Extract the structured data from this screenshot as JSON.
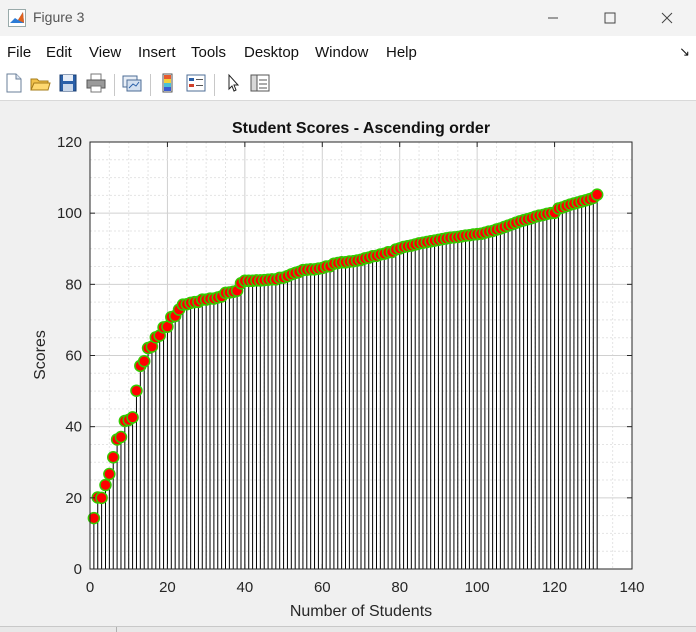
{
  "window": {
    "title": "Figure 3"
  },
  "menu": {
    "items": [
      "File",
      "Edit",
      "View",
      "Insert",
      "Tools",
      "Desktop",
      "Window",
      "Help"
    ]
  },
  "toolbar": {
    "icons": [
      "new-figure-icon",
      "open-file-icon",
      "save-icon",
      "print-icon",
      "link-plot-icon",
      "insert-colorbar-icon",
      "insert-legend-icon",
      "edit-plot-icon",
      "property-inspector-icon"
    ]
  },
  "chart_data": {
    "type": "stem",
    "title": "Student Scores - Ascending order",
    "xlabel": "Number of Students",
    "ylabel": "Scores",
    "xlim": [
      0,
      140
    ],
    "ylim": [
      0,
      120
    ],
    "xticks": [
      0,
      20,
      40,
      60,
      80,
      100,
      120,
      140
    ],
    "yticks": [
      0,
      20,
      40,
      60,
      80,
      100,
      120
    ],
    "grid": "minor",
    "marker_face_color": "#ff0000",
    "marker_edge_color": "#33cc00",
    "stem_color": "#000000",
    "x_start": 1,
    "values": [
      14.3,
      20.1,
      20.0,
      23.6,
      26.7,
      31.4,
      36.4,
      37.1,
      41.6,
      41.9,
      42.6,
      50.1,
      57.1,
      58.4,
      62.1,
      62.5,
      65.1,
      65.6,
      67.9,
      68.1,
      70.8,
      71.1,
      72.9,
      74.3,
      74.4,
      74.8,
      75.0,
      75.1,
      75.7,
      75.7,
      76.0,
      76.0,
      76.3,
      76.6,
      77.6,
      77.7,
      77.9,
      78.2,
      80.3,
      81.0,
      81.0,
      81.0,
      81.1,
      81.1,
      81.2,
      81.3,
      81.4,
      81.4,
      81.8,
      81.9,
      82.3,
      82.8,
      83.2,
      83.5,
      84.0,
      84.1,
      84.2,
      84.2,
      84.4,
      84.6,
      85.0,
      85.1,
      85.8,
      86.0,
      86.2,
      86.2,
      86.4,
      86.5,
      86.7,
      86.9,
      87.3,
      87.5,
      87.9,
      88.0,
      88.4,
      88.6,
      89.0,
      89.1,
      89.8,
      90.1,
      90.5,
      90.7,
      90.9,
      91.2,
      91.5,
      91.7,
      91.9,
      92.1,
      92.3,
      92.5,
      92.7,
      92.9,
      93.1,
      93.2,
      93.3,
      93.5,
      93.7,
      93.8,
      94.0,
      94.1,
      94.2,
      94.5,
      94.8,
      95.0,
      95.4,
      95.7,
      96.1,
      96.5,
      96.9,
      97.3,
      97.7,
      98.0,
      98.3,
      98.6,
      99.0,
      99.3,
      99.5,
      99.8,
      100.0,
      100.1,
      101.3,
      101.6,
      102.0,
      102.4,
      102.7,
      103.0,
      103.3,
      103.6,
      103.9,
      104.3,
      105.2
    ]
  }
}
